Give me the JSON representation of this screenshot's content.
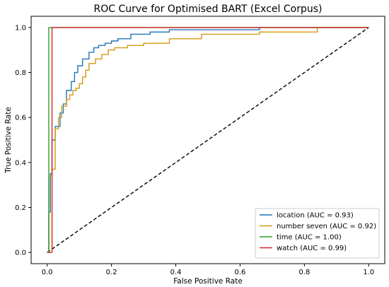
{
  "chart_data": {
    "type": "line",
    "title": "ROC Curve for Optimised BART (Excel Corpus)",
    "xlabel": "False Positive Rate",
    "ylabel": "True Positive Rate",
    "xlim": [
      -0.05,
      1.05
    ],
    "ylim": [
      -0.05,
      1.05
    ],
    "xticks": [
      "0.0",
      "0.2",
      "0.4",
      "0.6",
      "0.8",
      "1.0"
    ],
    "yticks": [
      "0.0",
      "0.2",
      "0.4",
      "0.6",
      "0.8",
      "1.0"
    ],
    "grid": false,
    "legend_position": "lower-right",
    "series": [
      {
        "name": "location (AUC = 0.93)",
        "color": "#1f77b4",
        "x": [
          0.0,
          0.005,
          0.005,
          0.01,
          0.01,
          0.015,
          0.015,
          0.025,
          0.025,
          0.04,
          0.04,
          0.05,
          0.05,
          0.06,
          0.06,
          0.075,
          0.075,
          0.085,
          0.085,
          0.095,
          0.095,
          0.11,
          0.11,
          0.13,
          0.13,
          0.145,
          0.145,
          0.16,
          0.16,
          0.18,
          0.18,
          0.2,
          0.2,
          0.22,
          0.22,
          0.26,
          0.26,
          0.32,
          0.32,
          0.38,
          0.38,
          0.44,
          0.44,
          0.66,
          0.66,
          1.0
        ],
        "y": [
          0.0,
          0.0,
          0.18,
          0.18,
          0.35,
          0.35,
          0.5,
          0.5,
          0.56,
          0.56,
          0.62,
          0.62,
          0.66,
          0.66,
          0.72,
          0.72,
          0.76,
          0.76,
          0.8,
          0.8,
          0.83,
          0.83,
          0.86,
          0.86,
          0.89,
          0.89,
          0.91,
          0.91,
          0.92,
          0.92,
          0.93,
          0.93,
          0.94,
          0.94,
          0.95,
          0.95,
          0.97,
          0.97,
          0.98,
          0.98,
          0.99,
          0.99,
          0.99,
          0.99,
          1.0,
          1.0
        ]
      },
      {
        "name": "number seven  (AUC = 0.92)",
        "color": "#d69a10",
        "x": [
          0.0,
          0.005,
          0.005,
          0.015,
          0.015,
          0.025,
          0.025,
          0.035,
          0.035,
          0.045,
          0.045,
          0.06,
          0.06,
          0.07,
          0.07,
          0.08,
          0.08,
          0.09,
          0.09,
          0.1,
          0.1,
          0.11,
          0.11,
          0.12,
          0.12,
          0.13,
          0.13,
          0.15,
          0.15,
          0.17,
          0.17,
          0.19,
          0.19,
          0.21,
          0.21,
          0.25,
          0.25,
          0.3,
          0.3,
          0.38,
          0.38,
          0.48,
          0.48,
          0.66,
          0.66,
          0.84,
          0.84,
          1.0
        ],
        "y": [
          0.0,
          0.0,
          0.34,
          0.34,
          0.37,
          0.37,
          0.55,
          0.55,
          0.6,
          0.6,
          0.65,
          0.65,
          0.68,
          0.68,
          0.7,
          0.7,
          0.72,
          0.72,
          0.73,
          0.73,
          0.75,
          0.75,
          0.78,
          0.78,
          0.81,
          0.81,
          0.84,
          0.84,
          0.86,
          0.86,
          0.88,
          0.88,
          0.9,
          0.9,
          0.91,
          0.91,
          0.92,
          0.92,
          0.93,
          0.93,
          0.95,
          0.95,
          0.97,
          0.97,
          0.98,
          0.98,
          1.0,
          1.0
        ]
      },
      {
        "name": "time (AUC = 1.00)",
        "color": "#2ca02c",
        "x": [
          0.0,
          0.0,
          0.0,
          0.005,
          0.005,
          1.0
        ],
        "y": [
          0.0,
          0.0,
          0.0,
          0.0,
          1.0,
          1.0
        ]
      },
      {
        "name": "watch (AUC = 0.99)",
        "color": "#d62728",
        "x": [
          0.0,
          0.015,
          0.015,
          1.0
        ],
        "y": [
          0.0,
          0.0,
          1.0,
          1.0
        ]
      }
    ]
  }
}
